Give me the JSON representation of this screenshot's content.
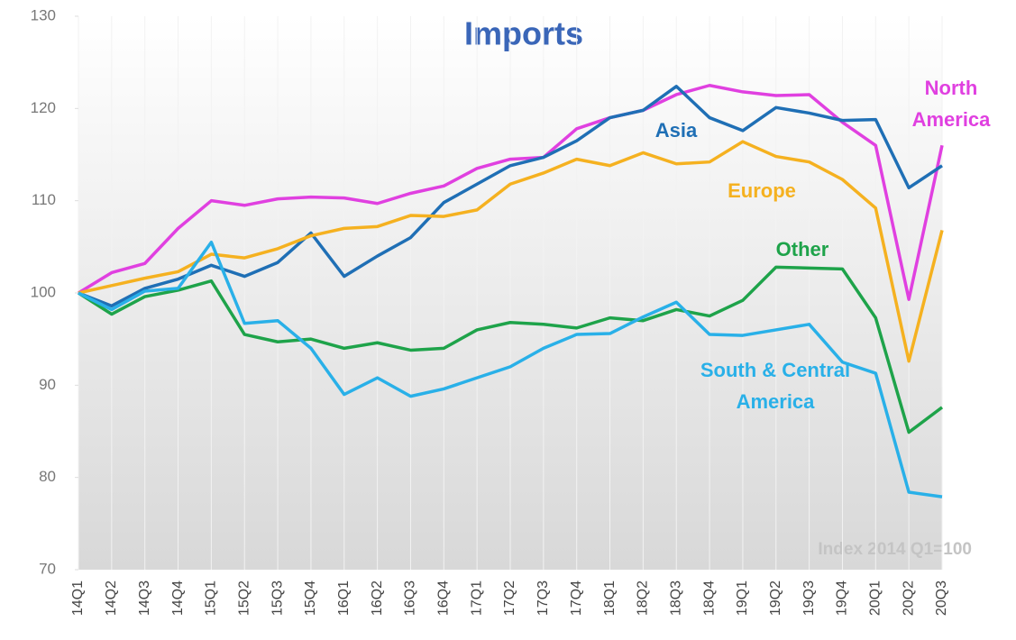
{
  "chart_data": {
    "type": "line",
    "title": "Imports",
    "note": "Index 2014 Q1=100",
    "categories": [
      "14Q1",
      "14Q2",
      "14Q3",
      "14Q4",
      "15Q1",
      "15Q2",
      "15Q3",
      "15Q4",
      "16Q1",
      "16Q2",
      "16Q3",
      "16Q4",
      "17Q1",
      "17Q2",
      "17Q3",
      "17Q4",
      "18Q1",
      "18Q2",
      "18Q3",
      "18Q4",
      "19Q1",
      "19Q2",
      "19Q3",
      "19Q4",
      "20Q1",
      "20Q2",
      "20Q3"
    ],
    "ylim": [
      70,
      130
    ],
    "yticks": [
      70,
      80,
      90,
      100,
      110,
      120,
      130
    ],
    "series": [
      {
        "name": "North America",
        "color": "#e040e0",
        "values": [
          100,
          102.2,
          103.2,
          107,
          110,
          109.5,
          110.2,
          110.4,
          110.3,
          109.7,
          110.8,
          111.6,
          113.5,
          114.5,
          114.7,
          117.8,
          119,
          119.8,
          121.5,
          122.5,
          121.8,
          121.4,
          121.5,
          118.5,
          116,
          99.3,
          116
        ]
      },
      {
        "name": "Asia",
        "color": "#1f6fb5",
        "values": [
          100,
          98.6,
          100.5,
          101.5,
          103,
          101.8,
          103.3,
          106.5,
          101.8,
          104,
          106,
          109.8,
          111.8,
          113.8,
          114.7,
          116.5,
          119,
          119.8,
          122.4,
          119,
          117.6,
          120.1,
          119.5,
          118.7,
          118.8,
          111.4,
          113.8
        ]
      },
      {
        "name": "Europe",
        "color": "#f5b120",
        "values": [
          100,
          100.8,
          101.6,
          102.3,
          104.2,
          103.8,
          104.8,
          106.2,
          107,
          107.2,
          108.4,
          108.3,
          109,
          111.8,
          113,
          114.5,
          113.8,
          115.2,
          114,
          114.2,
          116.4,
          114.8,
          114.2,
          112.3,
          109.2,
          92.6,
          106.8
        ]
      },
      {
        "name": "Other",
        "color": "#1ea34a",
        "values": [
          100,
          97.7,
          99.6,
          100.3,
          101.3,
          95.5,
          94.7,
          95,
          94,
          94.6,
          93.8,
          94,
          96,
          96.8,
          96.6,
          96.2,
          97.3,
          97,
          98.2,
          97.5,
          99.2,
          102.8,
          102.7,
          102.6,
          97.3,
          84.9,
          87.6
        ]
      },
      {
        "name": "South & Central America",
        "color": "#29b0e8",
        "values": [
          100,
          98.2,
          100.2,
          100.5,
          105.5,
          96.7,
          97,
          94,
          89,
          90.8,
          88.8,
          89.6,
          90.8,
          92,
          94,
          95.5,
          95.6,
          97.4,
          99,
          95.5,
          95.4,
          96,
          96.6,
          92.5,
          91.3,
          78.4,
          77.9
        ]
      }
    ]
  }
}
